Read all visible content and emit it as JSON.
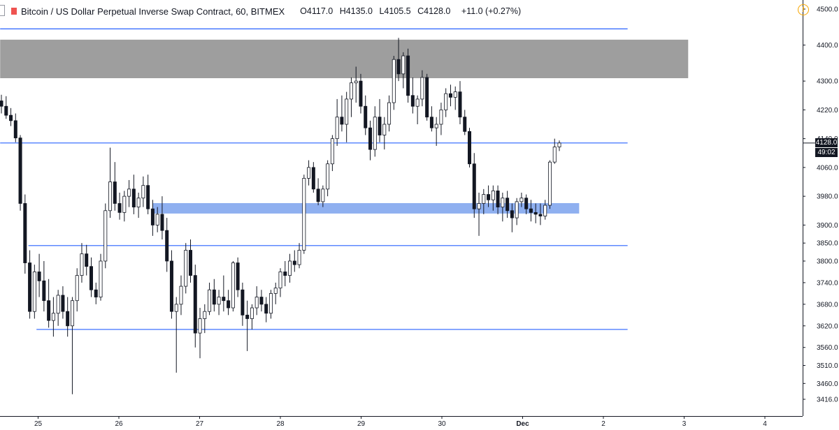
{
  "header": {
    "title": "Bitcoin / US Dollar Perpetual Inverse Swap Contract, 60, BITMEX",
    "o_label": "O",
    "o_value": "4117.0",
    "h_label": "H",
    "h_value": "4135.0",
    "l_label": "L",
    "l_value": "4105.5",
    "c_label": "C",
    "c_value": "4128.0",
    "change": "+11.0 (+0.27%)"
  },
  "colors": {
    "line": "#2962ff",
    "zone_resistance": "#9e9e9e",
    "zone_support": "#8fb0f0",
    "candle": "#131722",
    "axis_text": "#131722",
    "alert": "#f7a600"
  },
  "icons": {
    "alert": "alert-circle-icon",
    "symbol": "symbol-color-marker"
  },
  "chart_data": {
    "type": "candlestick",
    "timeframe": "60",
    "exchange": "BITMEX",
    "ylim": [
      3380,
      4520
    ],
    "y_ticks": [
      3416.0,
      3460.0,
      3510.0,
      3560.0,
      3620.0,
      3680.0,
      3740.0,
      3800.0,
      3850.0,
      3900.0,
      3980.0,
      4060.0,
      4140.0,
      4220.0,
      4300.0,
      4400.0,
      4500.0
    ],
    "x_ticks": [
      {
        "label": "25",
        "pos": 1
      },
      {
        "label": "26",
        "pos": 2
      },
      {
        "label": "27",
        "pos": 3
      },
      {
        "label": "28",
        "pos": 4
      },
      {
        "label": "29",
        "pos": 5
      },
      {
        "label": "30",
        "pos": 6
      },
      {
        "label": "Dec",
        "pos": 7,
        "bold": true
      },
      {
        "label": "2",
        "pos": 8
      },
      {
        "label": "3",
        "pos": 9
      },
      {
        "label": "4",
        "pos": 10
      }
    ],
    "last_price": "4128.0",
    "countdown": "49:02",
    "horizontal_lines": [
      {
        "price": 4445,
        "from": 0.53,
        "to": 8.3
      },
      {
        "price": 4128,
        "from": 0.53,
        "to": 8.3
      },
      {
        "price": 3843,
        "from": 0.88,
        "to": 8.3
      },
      {
        "price": 3610,
        "from": 0.98,
        "to": 8.3
      }
    ],
    "zones": [
      {
        "name": "resistance",
        "top": 4415,
        "bottom": 4308,
        "from": 0.53,
        "to": 9.05
      },
      {
        "name": "support",
        "top": 3961,
        "bottom": 3932,
        "from": 2.42,
        "to": 7.7
      }
    ],
    "candles": [
      [
        4245,
        4262,
        4210,
        4230
      ],
      [
        4230,
        4258,
        4195,
        4205
      ],
      [
        4205,
        4225,
        4175,
        4190
      ],
      [
        4190,
        4210,
        4130,
        4142
      ],
      [
        4142,
        4150,
        3940,
        3960
      ],
      [
        3960,
        3985,
        3765,
        3795
      ],
      [
        3795,
        3830,
        3640,
        3660
      ],
      [
        3660,
        3790,
        3640,
        3770
      ],
      [
        3770,
        3820,
        3700,
        3745
      ],
      [
        3745,
        3800,
        3660,
        3690
      ],
      [
        3690,
        3750,
        3615,
        3635
      ],
      [
        3635,
        3700,
        3590,
        3655
      ],
      [
        3655,
        3720,
        3620,
        3705
      ],
      [
        3705,
        3730,
        3640,
        3660
      ],
      [
        3660,
        3700,
        3590,
        3620
      ],
      [
        3620,
        3700,
        3430,
        3690
      ],
      [
        3690,
        3780,
        3660,
        3760
      ],
      [
        3760,
        3850,
        3740,
        3820
      ],
      [
        3820,
        3845,
        3760,
        3785
      ],
      [
        3785,
        3810,
        3700,
        3720
      ],
      [
        3720,
        3740,
        3680,
        3700
      ],
      [
        3700,
        3820,
        3690,
        3800
      ],
      [
        3800,
        3960,
        3780,
        3940
      ],
      [
        3940,
        4115,
        3920,
        4020
      ],
      [
        4020,
        4075,
        3940,
        3960
      ],
      [
        3960,
        3990,
        3915,
        3935
      ],
      [
        3935,
        3995,
        3910,
        3980
      ],
      [
        3980,
        4025,
        3950,
        4000
      ],
      [
        4000,
        4040,
        3930,
        3950
      ],
      [
        3950,
        3990,
        3920,
        3975
      ],
      [
        3975,
        4035,
        3950,
        4010
      ],
      [
        4010,
        4040,
        3930,
        3945
      ],
      [
        3945,
        3970,
        3870,
        3900
      ],
      [
        3900,
        3950,
        3880,
        3930
      ],
      [
        3930,
        3980,
        3860,
        3885
      ],
      [
        3885,
        3920,
        3770,
        3800
      ],
      [
        3800,
        3830,
        3640,
        3660
      ],
      [
        3660,
        3700,
        3490,
        3680
      ],
      [
        3680,
        3760,
        3650,
        3730
      ],
      [
        3730,
        3850,
        3710,
        3830
      ],
      [
        3830,
        3860,
        3740,
        3760
      ],
      [
        3760,
        3790,
        3560,
        3600
      ],
      [
        3600,
        3670,
        3530,
        3640
      ],
      [
        3640,
        3680,
        3600,
        3660
      ],
      [
        3660,
        3740,
        3650,
        3720
      ],
      [
        3720,
        3750,
        3660,
        3680
      ],
      [
        3680,
        3720,
        3650,
        3700
      ],
      [
        3700,
        3760,
        3660,
        3690
      ],
      [
        3690,
        3720,
        3650,
        3670
      ],
      [
        3670,
        3800,
        3660,
        3795
      ],
      [
        3795,
        3810,
        3700,
        3720
      ],
      [
        3720,
        3740,
        3620,
        3650
      ],
      [
        3650,
        3690,
        3550,
        3640
      ],
      [
        3640,
        3680,
        3610,
        3670
      ],
      [
        3670,
        3730,
        3650,
        3700
      ],
      [
        3700,
        3720,
        3660,
        3680
      ],
      [
        3680,
        3700,
        3630,
        3655
      ],
      [
        3655,
        3720,
        3640,
        3710
      ],
      [
        3710,
        3740,
        3680,
        3725
      ],
      [
        3725,
        3780,
        3700,
        3770
      ],
      [
        3770,
        3800,
        3730,
        3760
      ],
      [
        3760,
        3820,
        3740,
        3800
      ],
      [
        3800,
        3830,
        3770,
        3790
      ],
      [
        3790,
        3850,
        3780,
        3830
      ],
      [
        3830,
        4040,
        3820,
        4030
      ],
      [
        4030,
        4080,
        4010,
        4060
      ],
      [
        4060,
        4075,
        3990,
        4000
      ],
      [
        4000,
        4030,
        3955,
        3965
      ],
      [
        3965,
        4010,
        3950,
        4000
      ],
      [
        4000,
        4080,
        3980,
        4070
      ],
      [
        4070,
        4150,
        4050,
        4140
      ],
      [
        4140,
        4250,
        4120,
        4200
      ],
      [
        4200,
        4260,
        4160,
        4180
      ],
      [
        4180,
        4270,
        4130,
        4250
      ],
      [
        4250,
        4310,
        4200,
        4295
      ],
      [
        4295,
        4340,
        4240,
        4300
      ],
      [
        4300,
        4320,
        4210,
        4230
      ],
      [
        4230,
        4260,
        4150,
        4170
      ],
      [
        4170,
        4190,
        4080,
        4110
      ],
      [
        4110,
        4230,
        4090,
        4200
      ],
      [
        4200,
        4250,
        4130,
        4150
      ],
      [
        4150,
        4200,
        4110,
        4180
      ],
      [
        4180,
        4260,
        4160,
        4240
      ],
      [
        4240,
        4370,
        4220,
        4360
      ],
      [
        4360,
        4420,
        4300,
        4320
      ],
      [
        4320,
        4380,
        4280,
        4370
      ],
      [
        4370,
        4390,
        4240,
        4260
      ],
      [
        4260,
        4310,
        4210,
        4230
      ],
      [
        4230,
        4260,
        4180,
        4250
      ],
      [
        4250,
        4330,
        4230,
        4310
      ],
      [
        4310,
        4320,
        4190,
        4200
      ],
      [
        4200,
        4230,
        4160,
        4170
      ],
      [
        4170,
        4200,
        4120,
        4180
      ],
      [
        4180,
        4240,
        4150,
        4220
      ],
      [
        4220,
        4280,
        4200,
        4265
      ],
      [
        4265,
        4290,
        4230,
        4255
      ],
      [
        4255,
        4285,
        4220,
        4270
      ],
      [
        4270,
        4300,
        4180,
        4200
      ],
      [
        4200,
        4220,
        4150,
        4160
      ],
      [
        4160,
        4170,
        4060,
        4070
      ],
      [
        4070,
        4100,
        3920,
        3945
      ],
      [
        3945,
        3990,
        3870,
        3960
      ],
      [
        3960,
        4000,
        3930,
        3985
      ],
      [
        3985,
        4010,
        3950,
        3970
      ],
      [
        3970,
        4010,
        3940,
        3995
      ],
      [
        3995,
        4010,
        3930,
        3950
      ],
      [
        3950,
        3990,
        3910,
        3975
      ],
      [
        3975,
        3995,
        3920,
        3940
      ],
      [
        3940,
        3960,
        3880,
        3920
      ],
      [
        3920,
        3975,
        3900,
        3965
      ],
      [
        3965,
        3990,
        3950,
        3975
      ],
      [
        3975,
        3985,
        3930,
        3945
      ],
      [
        3945,
        3970,
        3910,
        3935
      ],
      [
        3935,
        3960,
        3905,
        3930
      ],
      [
        3930,
        3960,
        3900,
        3925
      ],
      [
        3925,
        3970,
        3915,
        3955
      ],
      [
        3955,
        4080,
        3945,
        4075
      ],
      [
        4075,
        4140,
        4070,
        4117
      ],
      [
        4117,
        4135,
        4105.5,
        4128
      ]
    ]
  }
}
